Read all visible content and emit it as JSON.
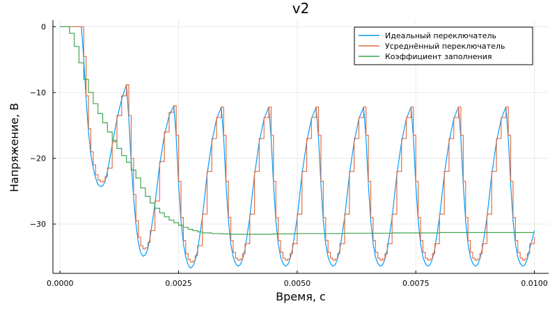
{
  "chart_data": {
    "type": "line",
    "title": "v2",
    "xlabel": "Время, с",
    "ylabel": "Напряжение, В",
    "xlim": [
      -0.00015,
      0.0103
    ],
    "ylim": [
      -37.5,
      1.0
    ],
    "xticks": [
      0.0,
      0.0025,
      0.005,
      0.0075,
      0.01
    ],
    "xtick_labels": [
      "0.0000",
      "0.0025",
      "0.0050",
      "0.0075",
      "0.0100"
    ],
    "yticks": [
      0,
      -10,
      -20,
      -30
    ],
    "ytick_labels": [
      "0",
      "−10",
      "−20",
      "−30"
    ],
    "grid": true,
    "legend_position": "top-right",
    "series": [
      {
        "name": "Идеальный переключатель",
        "color": "#009AFA",
        "x": [
          0.0,
          0.00045,
          0.0005,
          0.00055,
          0.0006,
          0.00065,
          0.0007,
          0.00075,
          0.0008,
          0.00085,
          0.0009,
          0.00095,
          0.001,
          0.0011,
          0.0012,
          0.0013,
          0.0014,
          0.00145,
          0.0015,
          0.00155,
          0.0016,
          0.00165,
          0.0017,
          0.00175,
          0.0018,
          0.00185,
          0.0019,
          0.002,
          0.0021,
          0.0022,
          0.0023,
          0.0024,
          0.00245,
          0.0025,
          0.00255,
          0.0026,
          0.00265,
          0.0027,
          0.00275,
          0.0028,
          0.00285,
          0.0029,
          0.003,
          0.0031,
          0.0032,
          0.0033,
          0.0034,
          0.00345,
          0.0035,
          0.00355,
          0.0036,
          0.00365,
          0.0037,
          0.00375,
          0.0038,
          0.00385,
          0.0039,
          0.004,
          0.0041,
          0.0042,
          0.0043,
          0.0044,
          0.00445,
          0.0045,
          0.00455,
          0.0046,
          0.00465,
          0.0047,
          0.00475,
          0.0048,
          0.00485,
          0.0049,
          0.005,
          0.0051,
          0.0052,
          0.0053,
          0.0054,
          0.00545,
          0.0055,
          0.00555,
          0.0056,
          0.00565,
          0.0057,
          0.00575,
          0.0058,
          0.00585,
          0.0059,
          0.006,
          0.0061,
          0.0062,
          0.0063,
          0.0064,
          0.00645,
          0.0065,
          0.00655,
          0.0066,
          0.00665,
          0.0067,
          0.00675,
          0.0068,
          0.00685,
          0.0069,
          0.007,
          0.0071,
          0.0072,
          0.0073,
          0.0074,
          0.00745,
          0.0075,
          0.00755,
          0.0076,
          0.00765,
          0.0077,
          0.00775,
          0.0078,
          0.00785,
          0.0079,
          0.008,
          0.0081,
          0.0082,
          0.0083,
          0.0084,
          0.00845,
          0.0085,
          0.00855,
          0.0086,
          0.00865,
          0.0087,
          0.00875,
          0.0088,
          0.00885,
          0.0089,
          0.009,
          0.0091,
          0.0092,
          0.0093,
          0.0094,
          0.00945,
          0.0095,
          0.00955,
          0.0096,
          0.00965,
          0.0097,
          0.00975,
          0.0098,
          0.00985,
          0.0099,
          0.01
        ],
        "y": [
          0.0,
          0.0,
          -5.0,
          -11.0,
          -16.0,
          -19.5,
          -21.5,
          -23.0,
          -24.0,
          -24.3,
          -24.2,
          -23.5,
          -22.0,
          -18.0,
          -14.0,
          -11.0,
          -8.8,
          -14.0,
          -20.5,
          -26.0,
          -30.0,
          -32.8,
          -34.3,
          -34.9,
          -34.7,
          -33.8,
          -32.0,
          -27.0,
          -21.0,
          -16.5,
          -13.5,
          -12.0,
          -17.0,
          -24.0,
          -29.5,
          -33.0,
          -35.0,
          -36.2,
          -36.7,
          -36.4,
          -35.5,
          -34.0,
          -29.0,
          -22.5,
          -17.5,
          -14.0,
          -12.2,
          -17.0,
          -24.0,
          -29.5,
          -33.0,
          -35.0,
          -36.0,
          -36.4,
          -36.2,
          -35.3,
          -33.8,
          -29.0,
          -22.5,
          -17.5,
          -14.0,
          -12.2,
          -17.0,
          -24.0,
          -29.5,
          -33.0,
          -35.0,
          -36.0,
          -36.4,
          -36.2,
          -35.3,
          -33.8,
          -29.0,
          -22.5,
          -17.5,
          -14.0,
          -12.2,
          -17.0,
          -24.0,
          -29.5,
          -33.0,
          -35.0,
          -36.0,
          -36.4,
          -36.2,
          -35.3,
          -33.8,
          -29.0,
          -22.5,
          -17.5,
          -14.0,
          -12.2,
          -17.0,
          -24.0,
          -29.5,
          -33.0,
          -35.0,
          -36.0,
          -36.4,
          -36.2,
          -35.3,
          -33.8,
          -29.0,
          -22.5,
          -17.5,
          -14.0,
          -12.2,
          -17.0,
          -24.0,
          -29.5,
          -33.0,
          -35.0,
          -36.0,
          -36.4,
          -36.2,
          -35.3,
          -33.8,
          -29.0,
          -22.5,
          -17.5,
          -14.0,
          -12.2,
          -17.0,
          -24.0,
          -29.5,
          -33.0,
          -35.0,
          -36.0,
          -36.4,
          -36.2,
          -35.3,
          -33.8,
          -29.0,
          -22.5,
          -17.5,
          -14.0,
          -12.2,
          -17.0,
          -24.0,
          -29.5,
          -33.0,
          -35.0,
          -36.0,
          -36.4,
          -36.2,
          -35.3,
          -33.8,
          -31.0
        ]
      },
      {
        "name": "Усреднённый переключатель",
        "color": "#E26F46",
        "x": [
          0.0,
          0.00045,
          0.0005,
          0.00055,
          0.0006,
          0.00065,
          0.0007,
          0.00075,
          0.0008,
          0.00085,
          0.0009,
          0.00095,
          0.001,
          0.0011,
          0.0012,
          0.0013,
          0.0014,
          0.00145,
          0.0015,
          0.00155,
          0.0016,
          0.00165,
          0.0017,
          0.00175,
          0.0018,
          0.00185,
          0.0019,
          0.002,
          0.0021,
          0.0022,
          0.0023,
          0.0024,
          0.00245,
          0.0025,
          0.00255,
          0.0026,
          0.00265,
          0.0027,
          0.00275,
          0.0028,
          0.00285,
          0.0029,
          0.003,
          0.0031,
          0.0032,
          0.0033,
          0.0034,
          0.00345,
          0.0035,
          0.00355,
          0.0036,
          0.00365,
          0.0037,
          0.00375,
          0.0038,
          0.00385,
          0.0039,
          0.004,
          0.0041,
          0.0042,
          0.0043,
          0.0044,
          0.00445,
          0.0045,
          0.00455,
          0.0046,
          0.00465,
          0.0047,
          0.00475,
          0.0048,
          0.00485,
          0.0049,
          0.005,
          0.0051,
          0.0052,
          0.0053,
          0.0054,
          0.00545,
          0.0055,
          0.00555,
          0.0056,
          0.00565,
          0.0057,
          0.00575,
          0.0058,
          0.00585,
          0.0059,
          0.006,
          0.0061,
          0.0062,
          0.0063,
          0.0064,
          0.00645,
          0.0065,
          0.00655,
          0.0066,
          0.00665,
          0.0067,
          0.00675,
          0.0068,
          0.00685,
          0.0069,
          0.007,
          0.0071,
          0.0072,
          0.0073,
          0.0074,
          0.00745,
          0.0075,
          0.00755,
          0.0076,
          0.00765,
          0.0077,
          0.00775,
          0.0078,
          0.00785,
          0.0079,
          0.008,
          0.0081,
          0.0082,
          0.0083,
          0.0084,
          0.00845,
          0.0085,
          0.00855,
          0.0086,
          0.00865,
          0.0087,
          0.00875,
          0.0088,
          0.00885,
          0.0089,
          0.009,
          0.0091,
          0.0092,
          0.0093,
          0.0094,
          0.00945,
          0.0095,
          0.00955,
          0.0096,
          0.00965,
          0.0097,
          0.00975,
          0.0098,
          0.00985,
          0.0099,
          0.01
        ],
        "y": [
          0.0,
          0.0,
          -4.5,
          -10.5,
          -15.5,
          -19.0,
          -21.0,
          -22.5,
          -23.3,
          -23.6,
          -23.5,
          -22.8,
          -21.5,
          -17.5,
          -13.5,
          -10.5,
          -8.8,
          -13.5,
          -20.0,
          -25.5,
          -29.5,
          -32.0,
          -33.3,
          -33.8,
          -33.6,
          -32.8,
          -31.0,
          -26.5,
          -20.5,
          -16.0,
          -13.0,
          -12.0,
          -16.5,
          -23.5,
          -29.0,
          -32.5,
          -34.5,
          -35.4,
          -35.8,
          -35.6,
          -34.8,
          -33.3,
          -28.5,
          -22.0,
          -17.0,
          -13.8,
          -12.2,
          -16.5,
          -23.5,
          -29.0,
          -32.5,
          -34.3,
          -35.2,
          -35.5,
          -35.3,
          -34.5,
          -33.0,
          -28.5,
          -22.0,
          -17.0,
          -13.8,
          -12.2,
          -16.5,
          -23.5,
          -29.0,
          -32.5,
          -34.3,
          -35.2,
          -35.5,
          -35.3,
          -34.5,
          -33.0,
          -28.5,
          -22.0,
          -17.0,
          -13.8,
          -12.2,
          -16.5,
          -23.5,
          -29.0,
          -32.5,
          -34.3,
          -35.2,
          -35.5,
          -35.3,
          -34.5,
          -33.0,
          -28.5,
          -22.0,
          -17.0,
          -13.8,
          -12.2,
          -16.5,
          -23.5,
          -29.0,
          -32.5,
          -34.3,
          -35.2,
          -35.5,
          -35.3,
          -34.5,
          -33.0,
          -28.5,
          -22.0,
          -17.0,
          -13.8,
          -12.2,
          -16.5,
          -23.5,
          -29.0,
          -32.5,
          -34.3,
          -35.2,
          -35.5,
          -35.3,
          -34.5,
          -33.0,
          -28.5,
          -22.0,
          -17.0,
          -13.8,
          -12.2,
          -16.5,
          -23.5,
          -29.0,
          -32.5,
          -34.3,
          -35.2,
          -35.5,
          -35.3,
          -34.5,
          -33.0,
          -28.5,
          -22.0,
          -17.0,
          -13.8,
          -12.2,
          -16.5,
          -23.5,
          -29.0,
          -32.5,
          -34.3,
          -35.2,
          -35.5,
          -35.3,
          -34.5,
          -33.0,
          -32.0
        ]
      },
      {
        "name": "Коэффициент заполнения",
        "color": "#3DA44D",
        "x": [
          0.0,
          0.0002,
          0.0003,
          0.0004,
          0.0005,
          0.0006,
          0.0007,
          0.0008,
          0.0009,
          0.001,
          0.0011,
          0.0012,
          0.0013,
          0.0014,
          0.0015,
          0.0016,
          0.0017,
          0.0018,
          0.0019,
          0.002,
          0.0021,
          0.0022,
          0.0023,
          0.0024,
          0.0025,
          0.0026,
          0.0027,
          0.0028,
          0.0029,
          0.003,
          0.0032,
          0.0034,
          0.0036,
          0.0038,
          0.004,
          0.0045,
          0.005,
          0.006,
          0.007,
          0.008,
          0.009,
          0.01
        ],
        "y": [
          0.0,
          -1.0,
          -3.0,
          -5.5,
          -8.0,
          -10.0,
          -11.7,
          -13.2,
          -14.6,
          -16.0,
          -17.3,
          -18.5,
          -19.6,
          -20.6,
          -21.8,
          -23.0,
          -24.5,
          -25.8,
          -26.8,
          -27.6,
          -28.3,
          -28.9,
          -29.4,
          -29.8,
          -30.2,
          -30.5,
          -30.8,
          -31.0,
          -31.2,
          -31.35,
          -31.45,
          -31.5,
          -31.55,
          -31.55,
          -31.55,
          -31.5,
          -31.45,
          -31.4,
          -31.35,
          -31.3,
          -31.3,
          -31.3
        ]
      }
    ]
  }
}
